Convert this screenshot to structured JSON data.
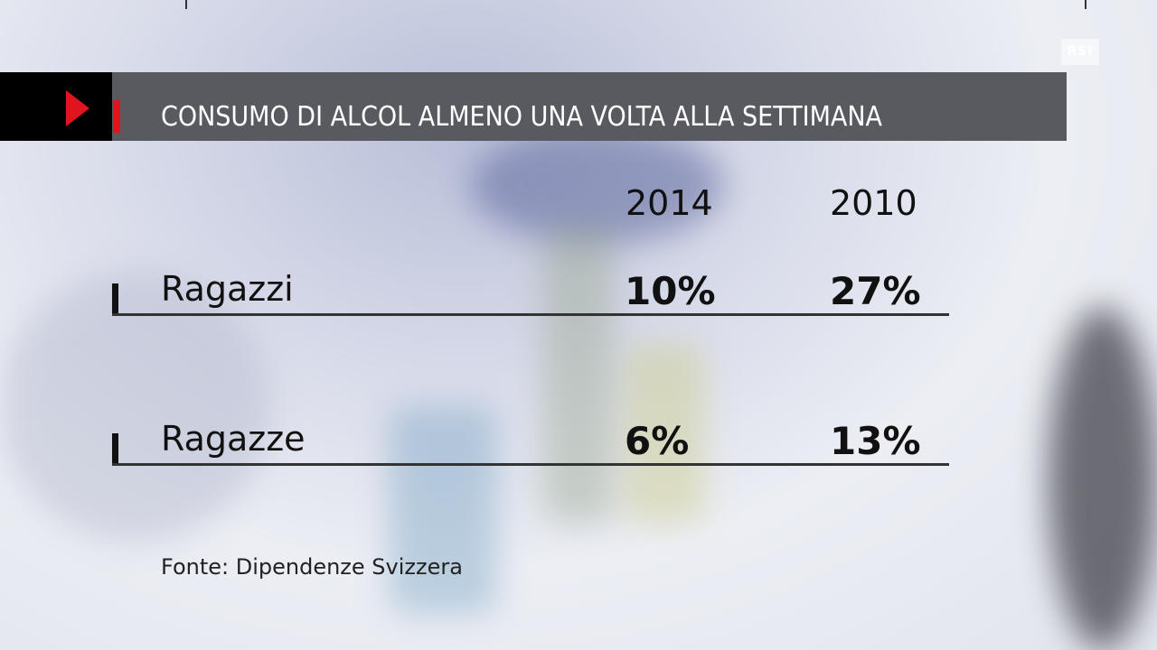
{
  "logo": "RSI",
  "title": "CONSUMO DI ALCOL ALMENO UNA VOLTA ALLA SETTIMANA",
  "source": "Fonte: Dipendenze Svizzera",
  "chart_data": {
    "type": "table",
    "title": "CONSUMO DI ALCOL ALMENO UNA VOLTA ALLA SETTIMANA",
    "columns": [
      "2014",
      "2010"
    ],
    "rows": [
      {
        "label": "Ragazzi",
        "values": [
          "10%",
          "27%"
        ]
      },
      {
        "label": "Ragazze",
        "values": [
          "6%",
          "13%"
        ]
      }
    ]
  },
  "colors": {
    "accent": "#e0141e",
    "bar": "#595a5f"
  }
}
